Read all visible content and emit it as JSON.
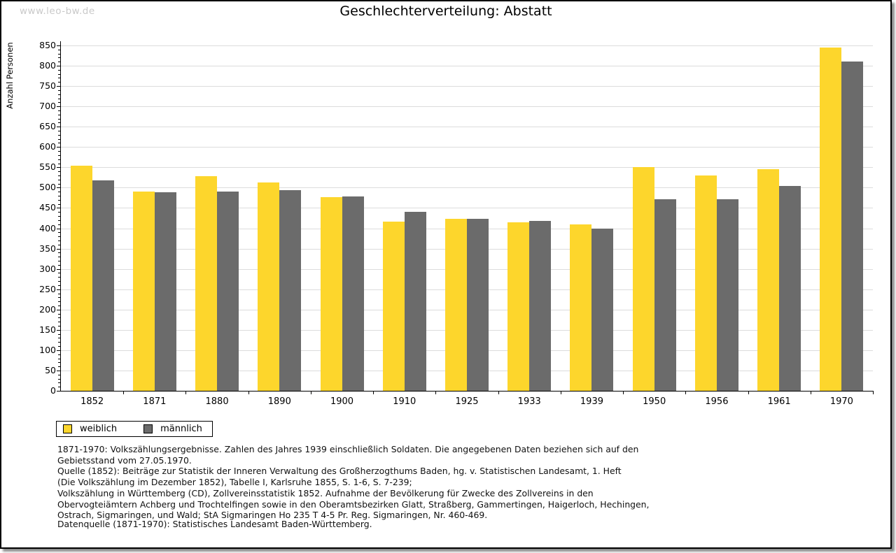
{
  "watermark": "www.leo-bw.de",
  "chart_data": {
    "type": "bar",
    "title": "Geschlechterverteilung: Abstatt",
    "ylabel": "Anzahl Personen",
    "xlabel": "",
    "ylim": [
      0,
      850
    ],
    "ytick_step": 50,
    "minor_tick_step": 10,
    "grid": true,
    "legend_position": "bottom-left",
    "categories": [
      "1852",
      "1871",
      "1880",
      "1890",
      "1900",
      "1910",
      "1925",
      "1933",
      "1939",
      "1950",
      "1956",
      "1961",
      "1970"
    ],
    "series": [
      {
        "name": "weiblich",
        "color": "#FDD62C",
        "values": [
          554,
          491,
          528,
          513,
          477,
          417,
          423,
          414,
          409,
          551,
          530,
          546,
          845
        ]
      },
      {
        "name": "männlich",
        "color": "#6B6B6B",
        "values": [
          518,
          489,
          490,
          494,
          479,
          440,
          424,
          419,
          399,
          472,
          472,
          504,
          810
        ]
      }
    ]
  },
  "footer": {
    "notes": "1871-1970: Volkszählungsergebnisse. Zahlen des Jahres 1939 einschließlich Soldaten. Die angegebenen Daten beziehen sich auf den\nGebietsstand vom 27.05.1970.\nQuelle (1852): Beiträge zur Statistik der Inneren Verwaltung des Großherzogthums Baden, hg. v. Statistischen Landesamt, 1. Heft\n(Die Volkszählung im Dezember 1852), Tabelle I, Karlsruhe 1855, S. 1-6, S. 7-239;\nVolkszählung in Württemberg (CD), Zollvereinsstatistik 1852. Aufnahme der Bevölkerung für Zwecke des Zollvereins in den\nObervogteiämtern Achberg und Trochtelfingen sowie in den Oberamtsbezirken Glatt, Straßberg, Gammertingen, Haigerloch, Hechingen,\nOstrach, Sigmaringen, und Wald; StA Sigmaringen Ho 235 T 4-5 Pr. Reg. Sigmaringen, Nr. 460-469.",
    "source": "Datenquelle (1871-1970): Statistisches Landesamt Baden-Württemberg."
  }
}
